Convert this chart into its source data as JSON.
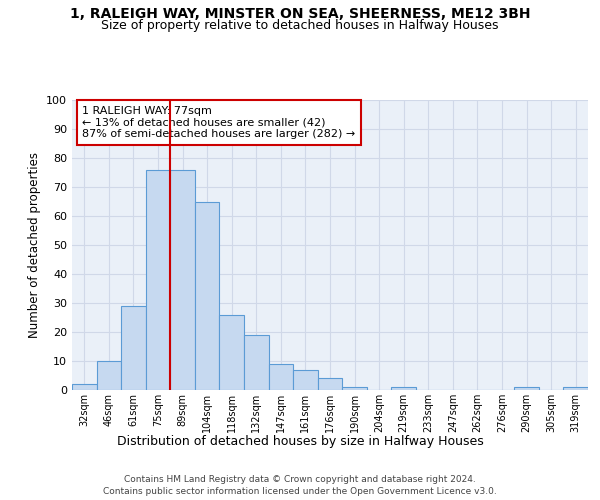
{
  "title1": "1, RALEIGH WAY, MINSTER ON SEA, SHEERNESS, ME12 3BH",
  "title2": "Size of property relative to detached houses in Halfway Houses",
  "xlabel": "Distribution of detached houses by size in Halfway Houses",
  "ylabel": "Number of detached properties",
  "categories": [
    "32sqm",
    "46sqm",
    "61sqm",
    "75sqm",
    "89sqm",
    "104sqm",
    "118sqm",
    "132sqm",
    "147sqm",
    "161sqm",
    "176sqm",
    "190sqm",
    "204sqm",
    "219sqm",
    "233sqm",
    "247sqm",
    "262sqm",
    "276sqm",
    "290sqm",
    "305sqm",
    "319sqm"
  ],
  "values": [
    2,
    10,
    29,
    76,
    76,
    65,
    26,
    19,
    9,
    7,
    4,
    1,
    0,
    1,
    0,
    0,
    0,
    0,
    1,
    0,
    1
  ],
  "bar_color": "#c6d9f0",
  "bar_edge_color": "#5b9bd5",
  "vline_x": 3.5,
  "vline_color": "#cc0000",
  "annotation_text": "1 RALEIGH WAY: 77sqm\n← 13% of detached houses are smaller (42)\n87% of semi-detached houses are larger (282) →",
  "annotation_box_color": "#ffffff",
  "annotation_box_edge": "#cc0000",
  "ylim": [
    0,
    100
  ],
  "yticks": [
    0,
    10,
    20,
    30,
    40,
    50,
    60,
    70,
    80,
    90,
    100
  ],
  "grid_color": "#d0d8e8",
  "background_color": "#eaf0f8",
  "footer1": "Contains HM Land Registry data © Crown copyright and database right 2024.",
  "footer2": "Contains public sector information licensed under the Open Government Licence v3.0."
}
